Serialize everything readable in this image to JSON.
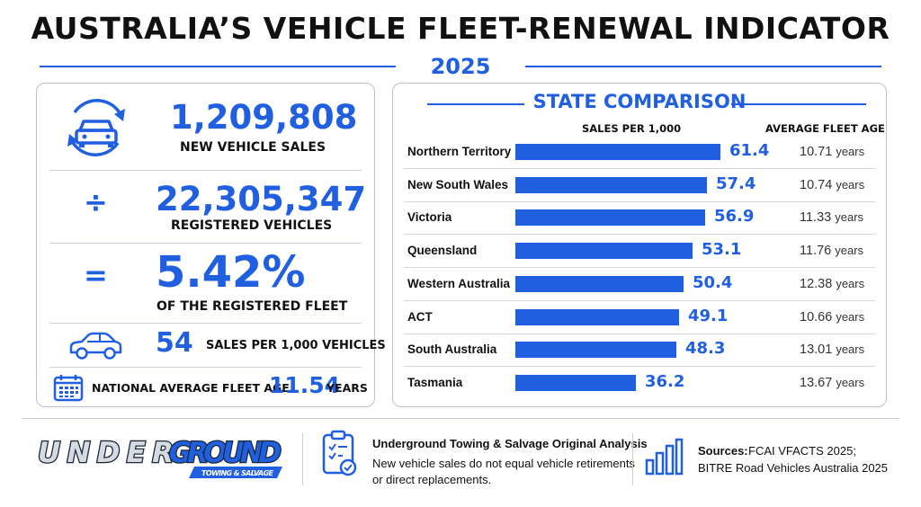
{
  "title": "AUSTRALIA’S VEHICLE FLEET-RENEWAL INDICATOR",
  "year": "2025",
  "summary": {
    "new_sales_value": "1,209,808",
    "new_sales_label": "NEW VEHICLE SALES",
    "divide_symbol": "÷",
    "registered_value": "22,305,347",
    "registered_label": "REGISTERED VEHICLES",
    "equals_symbol": "=",
    "percent_value": "5.42%",
    "percent_label": "OF THE REGISTERED FLEET",
    "per_thousand_value": "54",
    "per_thousand_label": "SALES PER 1,000 VEHICLES",
    "fleet_age_label": "NATIONAL AVERAGE FLEET AGE",
    "fleet_age_value": "11.54",
    "fleet_age_unit": "YEARS"
  },
  "chart_data": {
    "type": "bar",
    "title": "STATE COMPARISON",
    "value_header": "SALES PER 1,000",
    "age_header": "AVERAGE FLEET AGE",
    "age_unit": "years",
    "categories": [
      "Northern Territory",
      "New South Wales",
      "Victoria",
      "Queensland",
      "Western Australia",
      "ACT",
      "South Australia",
      "Tasmania"
    ],
    "values": [
      61.4,
      57.4,
      56.9,
      53.1,
      50.4,
      49.1,
      48.3,
      36.2
    ],
    "value_labels": [
      "61.4",
      "57.4",
      "56.9",
      "53.1",
      "50.4",
      "49.1",
      "48.3",
      "36.2"
    ],
    "fleet_age": [
      "10.71",
      "10.74",
      "11.33",
      "11.76",
      "12.38",
      "10.66",
      "13.01",
      "13.67"
    ],
    "orientation": "horizontal",
    "bar_color": "#1f5fe0"
  },
  "footer": {
    "logo_main": "UNDERGROUND",
    "logo_sub": "TOWING & SALVAGE",
    "analysis_title": "Underground Towing & Salvage Original Analysis",
    "analysis_line1": "New vehicle sales do not equal vehicle retirements",
    "analysis_line2": "or direct replacements.",
    "sources_label": "Sources:",
    "sources_line1": "FCAI VFACTS 2025;",
    "sources_line2": "BITRE Road Vehicles Australia 2025"
  },
  "colors": {
    "accent": "#1f5fe0",
    "text": "#111111",
    "border": "#b9c2cf"
  },
  "icons": [
    "car-refresh-icon",
    "car-icon",
    "calendar-icon",
    "clipboard-check-icon",
    "bar-chart-icon"
  ]
}
